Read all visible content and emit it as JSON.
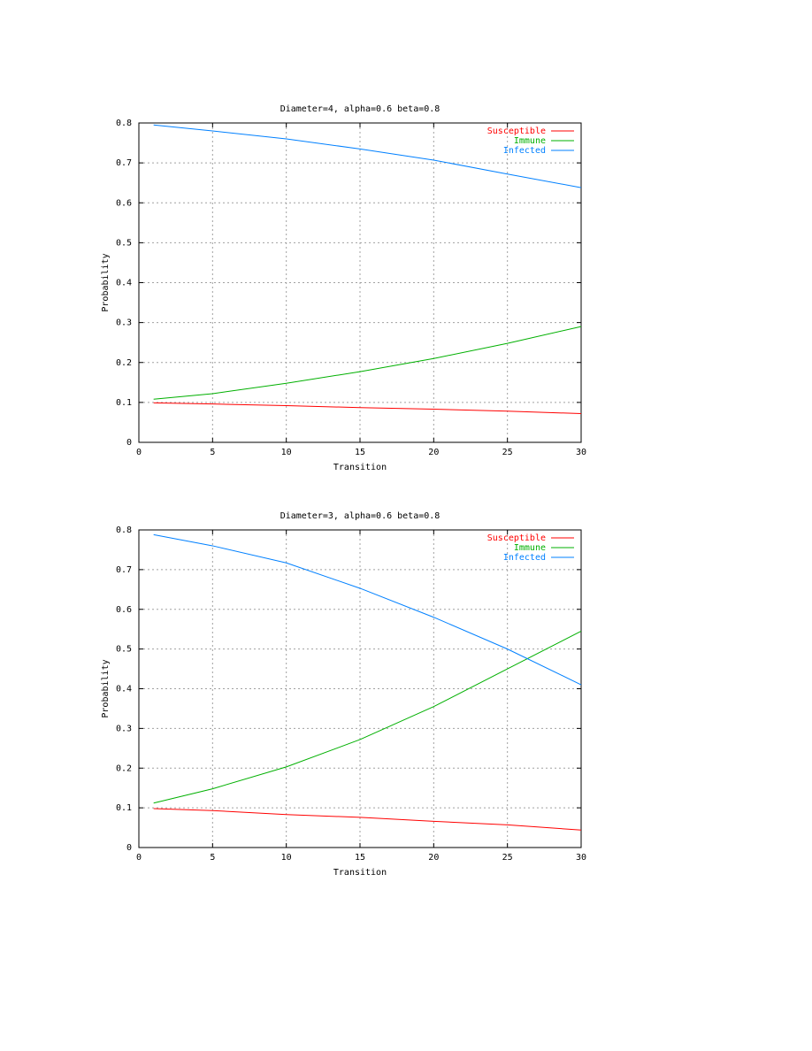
{
  "chart_data": [
    {
      "type": "line",
      "title": "Diameter=4, alpha=0.6 beta=0.8",
      "xlabel": "Transition",
      "ylabel": "Probability",
      "xlim": [
        0,
        30
      ],
      "ylim": [
        0,
        0.8
      ],
      "xticks": [
        "0",
        "5",
        "10",
        "15",
        "20",
        "25",
        "30"
      ],
      "yticks": [
        "0",
        "0.1",
        "0.2",
        "0.3",
        "0.4",
        "0.5",
        "0.6",
        "0.7",
        "0.8"
      ],
      "grid": true,
      "legend": "top-right",
      "x": [
        1,
        5,
        10,
        15,
        20,
        25,
        30
      ],
      "series": [
        {
          "name": "Susceptible",
          "color": "#ff0000",
          "values": [
            0.099,
            0.096,
            0.092,
            0.087,
            0.083,
            0.078,
            0.072
          ]
        },
        {
          "name": "Immune",
          "color": "#00b000",
          "values": [
            0.108,
            0.122,
            0.148,
            0.177,
            0.21,
            0.248,
            0.29
          ]
        },
        {
          "name": "Infected",
          "color": "#0080ff",
          "values": [
            0.795,
            0.78,
            0.76,
            0.735,
            0.707,
            0.672,
            0.638
          ]
        }
      ]
    },
    {
      "type": "line",
      "title": "Diameter=3, alpha=0.6 beta=0.8",
      "xlabel": "Transition",
      "ylabel": "Probability",
      "xlim": [
        0,
        30
      ],
      "ylim": [
        0,
        0.8
      ],
      "xticks": [
        "0",
        "5",
        "10",
        "15",
        "20",
        "25",
        "30"
      ],
      "yticks": [
        "0",
        "0.1",
        "0.2",
        "0.3",
        "0.4",
        "0.5",
        "0.6",
        "0.7",
        "0.8"
      ],
      "grid": true,
      "legend": "top-right",
      "x": [
        1,
        5,
        10,
        15,
        20,
        25,
        30
      ],
      "series": [
        {
          "name": "Susceptible",
          "color": "#ff0000",
          "values": [
            0.098,
            0.093,
            0.083,
            0.076,
            0.066,
            0.057,
            0.044
          ]
        },
        {
          "name": "Immune",
          "color": "#00b000",
          "values": [
            0.112,
            0.148,
            0.203,
            0.272,
            0.355,
            0.45,
            0.545
          ]
        },
        {
          "name": "Infected",
          "color": "#0080ff",
          "values": [
            0.788,
            0.76,
            0.717,
            0.653,
            0.58,
            0.5,
            0.41
          ]
        }
      ]
    }
  ]
}
